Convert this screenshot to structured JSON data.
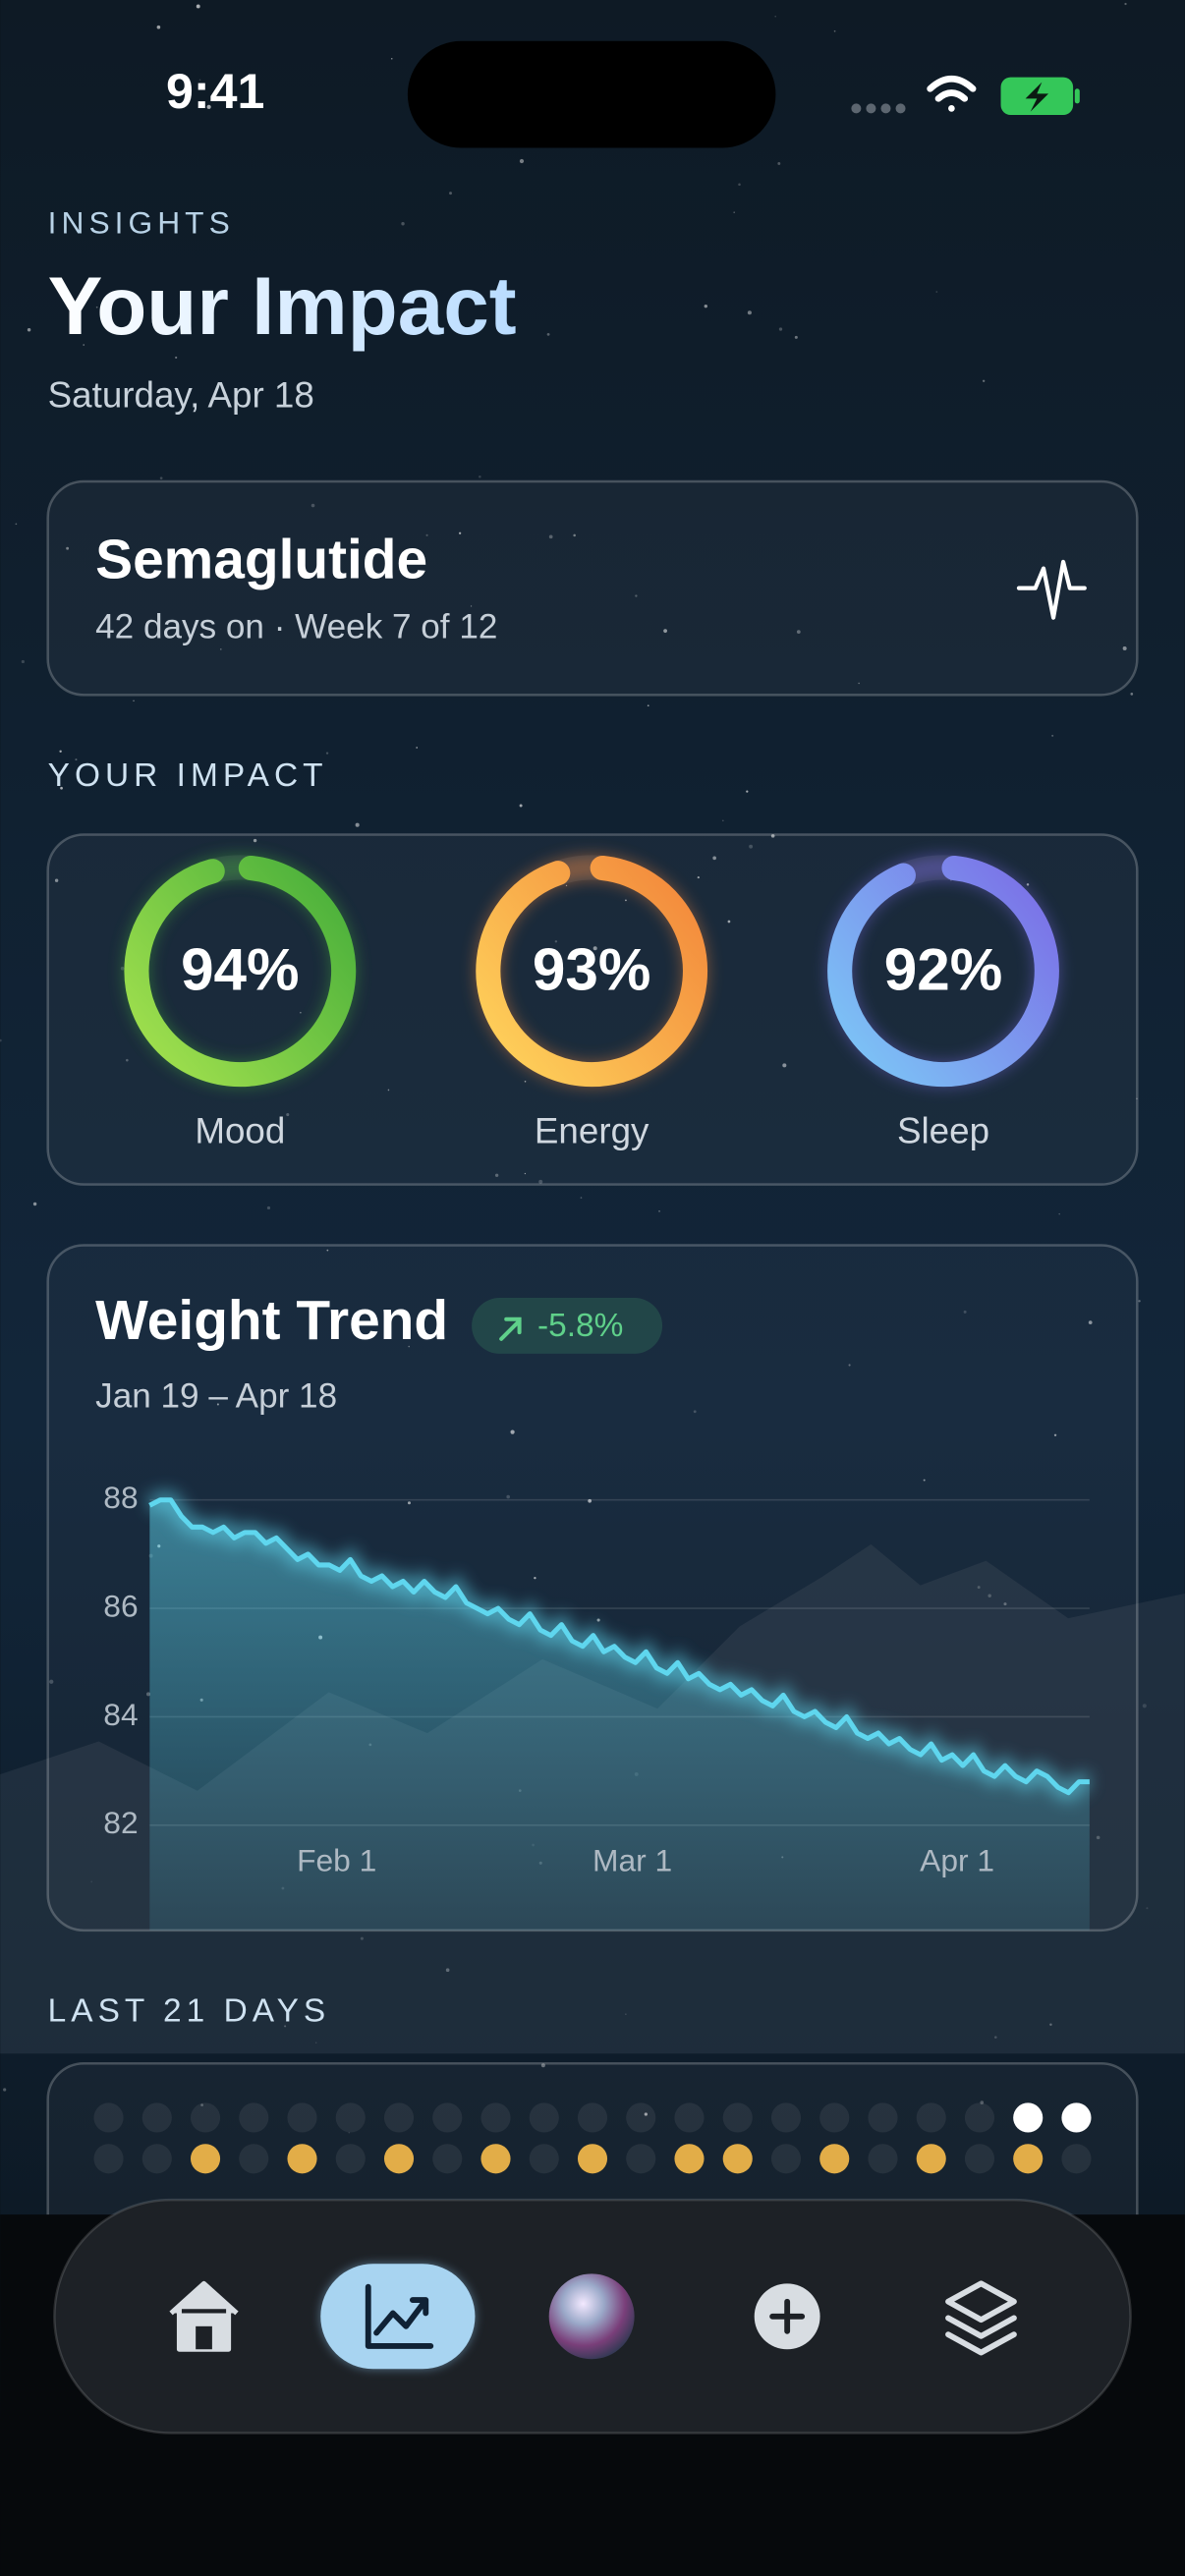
{
  "status_bar": {
    "time": "9:41"
  },
  "header": {
    "eyebrow": "INSIGHTS",
    "title": "Your Impact",
    "date": "Saturday, Apr 18"
  },
  "medication": {
    "name": "Semaglutide",
    "detail": "42 days on · Week 7 of 12"
  },
  "impact": {
    "heading": "YOUR IMPACT",
    "metrics": [
      {
        "name": "Mood",
        "value": 94,
        "label": "94%",
        "colors": [
          "#a6e34f",
          "#45ad3a"
        ]
      },
      {
        "name": "Energy",
        "value": 93,
        "label": "93%",
        "colors": [
          "#ffd55c",
          "#f2853a"
        ]
      },
      {
        "name": "Sleep",
        "value": 92,
        "label": "92%",
        "colors": [
          "#7ccaf7",
          "#7b6be6"
        ]
      }
    ]
  },
  "chart_data": {
    "type": "line",
    "title": "Weight Trend",
    "subtitle": "Jan 19 – Apr 18",
    "annotation": "-5.8%",
    "color": "#5fd6ee",
    "categories": [
      "Jan 19",
      "Jan 20",
      "Jan 21",
      "Jan 22",
      "Jan 23",
      "Jan 24",
      "Jan 25",
      "Jan 26",
      "Jan 27",
      "Jan 28",
      "Jan 29",
      "Jan 30",
      "Jan 31",
      "Feb 1",
      "Feb 2",
      "Feb 3",
      "Feb 4",
      "Feb 5",
      "Feb 6",
      "Feb 7",
      "Feb 8",
      "Feb 9",
      "Feb 10",
      "Feb 11",
      "Feb 12",
      "Feb 13",
      "Feb 14",
      "Feb 15",
      "Feb 16",
      "Feb 17",
      "Feb 18",
      "Feb 19",
      "Feb 20",
      "Feb 21",
      "Feb 22",
      "Feb 23",
      "Feb 24",
      "Feb 25",
      "Feb 26",
      "Feb 27",
      "Feb 28",
      "Mar 1",
      "Mar 2",
      "Mar 3",
      "Mar 4",
      "Mar 5",
      "Mar 6",
      "Mar 7",
      "Mar 8",
      "Mar 9",
      "Mar 10",
      "Mar 11",
      "Mar 12",
      "Mar 13",
      "Mar 14",
      "Mar 15",
      "Mar 16",
      "Mar 17",
      "Mar 18",
      "Mar 19",
      "Mar 20",
      "Mar 21",
      "Mar 22",
      "Mar 23",
      "Mar 24",
      "Mar 25",
      "Mar 26",
      "Mar 27",
      "Mar 28",
      "Mar 29",
      "Mar 30",
      "Mar 31",
      "Apr 1",
      "Apr 2",
      "Apr 3",
      "Apr 4",
      "Apr 5",
      "Apr 6",
      "Apr 7",
      "Apr 8",
      "Apr 9",
      "Apr 10",
      "Apr 11",
      "Apr 12",
      "Apr 13",
      "Apr 14",
      "Apr 15",
      "Apr 16",
      "Apr 17",
      "Apr 18"
    ],
    "values": [
      87.9,
      88.0,
      88.0,
      87.7,
      87.5,
      87.5,
      87.4,
      87.5,
      87.3,
      87.4,
      87.4,
      87.2,
      87.3,
      87.1,
      86.9,
      87.0,
      86.8,
      86.8,
      86.7,
      86.9,
      86.6,
      86.5,
      86.6,
      86.4,
      86.5,
      86.3,
      86.5,
      86.3,
      86.2,
      86.4,
      86.1,
      86.0,
      85.9,
      86.0,
      85.8,
      85.7,
      85.9,
      85.6,
      85.5,
      85.7,
      85.4,
      85.3,
      85.5,
      85.2,
      85.3,
      85.1,
      85.0,
      85.2,
      84.9,
      84.8,
      85.0,
      84.7,
      84.8,
      84.6,
      84.5,
      84.6,
      84.4,
      84.5,
      84.3,
      84.2,
      84.4,
      84.1,
      84.0,
      84.1,
      83.9,
      83.8,
      84.0,
      83.7,
      83.6,
      83.7,
      83.5,
      83.6,
      83.4,
      83.3,
      83.5,
      83.2,
      83.3,
      83.1,
      83.3,
      83.0,
      82.9,
      83.1,
      82.9,
      82.8,
      83.0,
      82.9,
      82.7,
      82.6,
      82.8,
      82.8
    ],
    "ylim": [
      80,
      89
    ],
    "yticks": [
      82,
      84,
      86,
      88
    ],
    "xticks": [
      "Feb 1",
      "Mar 1",
      "Apr 1"
    ],
    "grid": true
  },
  "last_days": {
    "heading": "LAST 21 DAYS",
    "top_color": "#ffffff",
    "bottom_color": "#e2ad48",
    "top_row": [
      false,
      false,
      false,
      false,
      false,
      false,
      false,
      false,
      false,
      false,
      false,
      false,
      false,
      false,
      false,
      false,
      false,
      false,
      false,
      true,
      true
    ],
    "bottom_row": [
      false,
      false,
      true,
      false,
      true,
      false,
      true,
      false,
      true,
      false,
      true,
      false,
      true,
      true,
      false,
      true,
      false,
      true,
      false,
      true,
      false
    ]
  },
  "tab_bar": {
    "active": 1
  }
}
